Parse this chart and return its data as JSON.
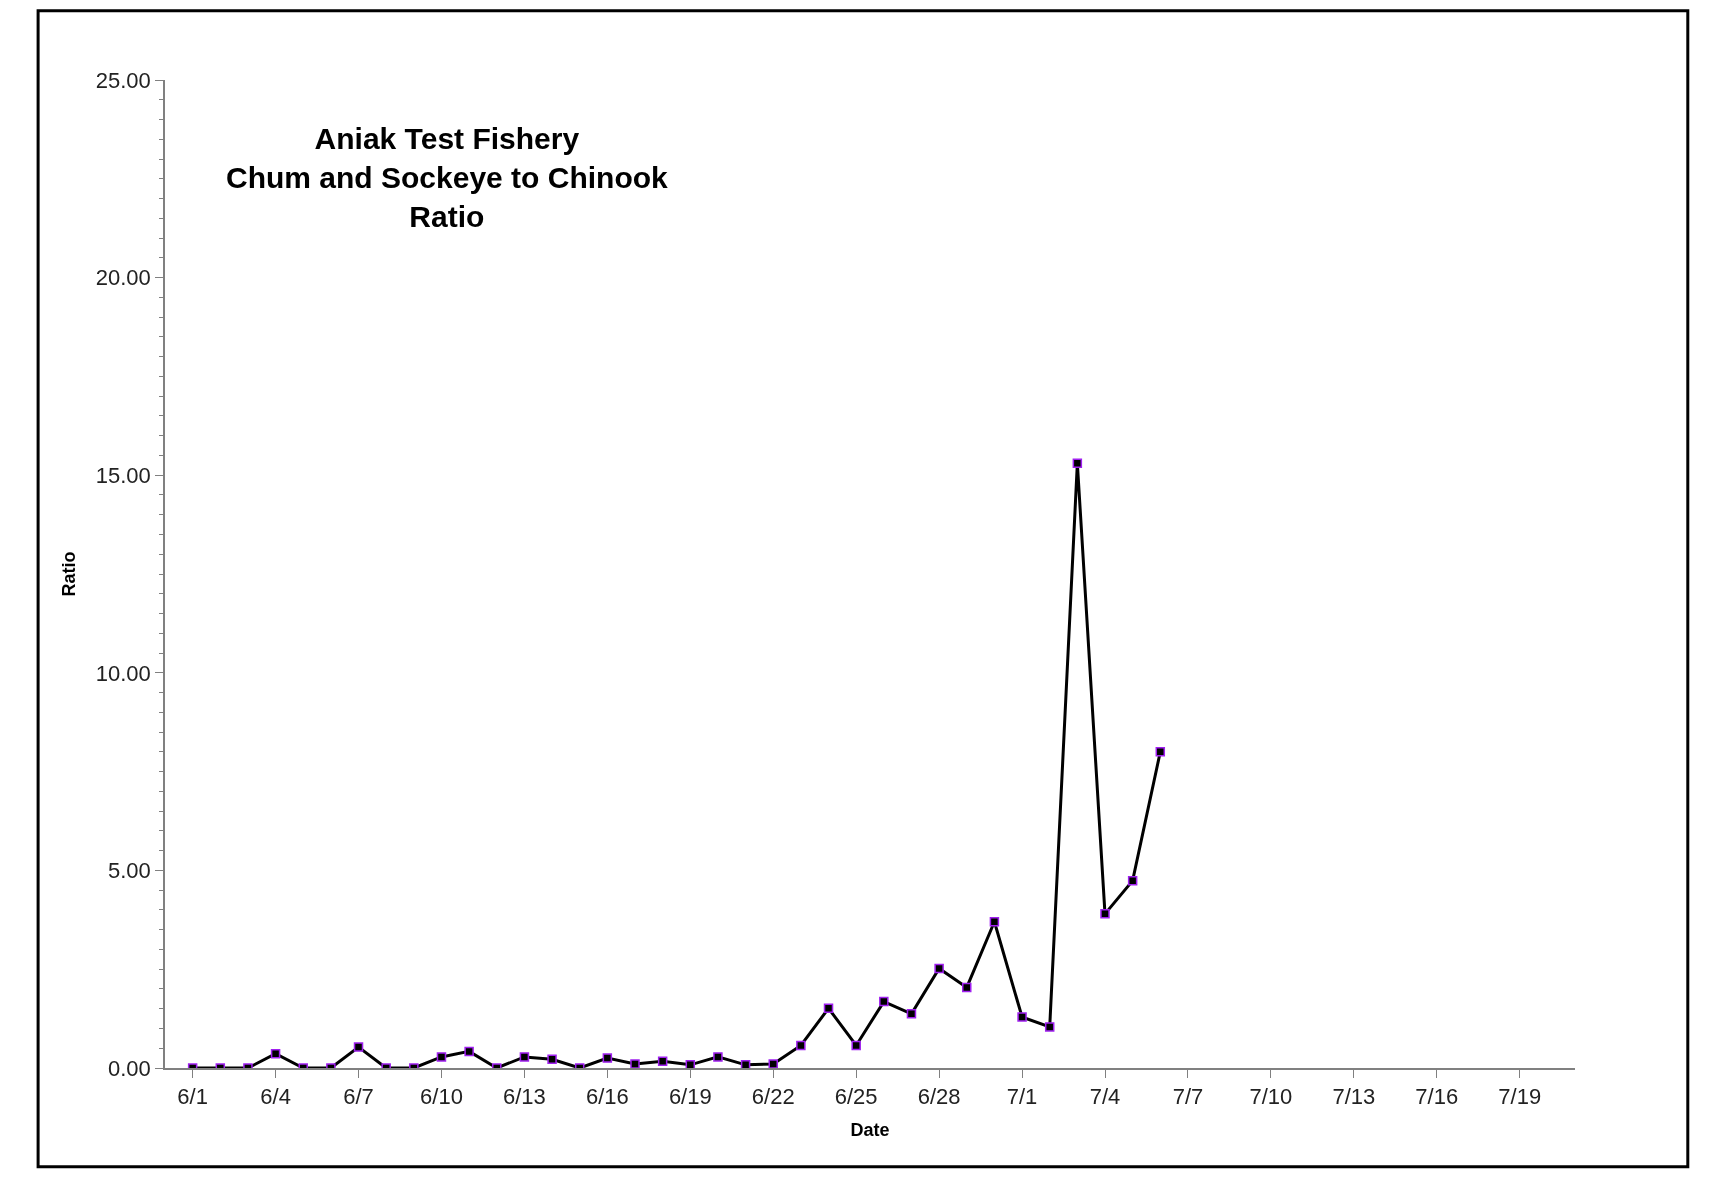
{
  "chart_data": {
    "type": "line",
    "title": "Aniak Test Fishery\nChum and Sockeye to Chinook\nRatio",
    "xlabel": "Date",
    "ylabel": "Ratio",
    "x": [
      "--06-01",
      "--06-02",
      "--06-03",
      "--06-04",
      "--06-05",
      "--06-06",
      "--06-07",
      "--06-08",
      "--06-09",
      "--06-10",
      "--06-11",
      "--06-12",
      "--06-13",
      "--06-14",
      "--06-15",
      "--06-16",
      "--06-17",
      "--06-18",
      "--06-19",
      "--06-20",
      "--06-21",
      "--06-22",
      "--06-23",
      "--06-24",
      "--06-25",
      "--06-26",
      "--06-27",
      "--06-28",
      "--06-29",
      "--06-30",
      "--07-01",
      "--07-02",
      "--07-03",
      "--07-04",
      "--07-05",
      "--07-06"
    ],
    "series": [
      {
        "color": "#000000",
        "values": [
          0,
          0,
          0,
          0.36,
          0,
          0,
          0.53,
          0,
          0,
          0.28,
          0.42,
          0,
          0.28,
          0.22,
          0,
          0.25,
          0.1,
          0.17,
          0.08,
          0.28,
          0.08,
          0.1,
          0.57,
          1.51,
          0.57,
          1.68,
          1.37,
          2.52,
          2.04,
          3.7,
          1.29,
          1.04,
          15.3,
          3.9,
          4.74,
          8.0
        ]
      }
    ],
    "marker": "square",
    "line_style": "solid",
    "xlim": [
      "--05-31",
      "--07-21"
    ],
    "xticks": [
      {
        "value": "--06-01",
        "label": "6/1"
      },
      {
        "value": "--06-04",
        "label": "6/4"
      },
      {
        "value": "--06-07",
        "label": "6/7"
      },
      {
        "value": "--06-10",
        "label": "6/10"
      },
      {
        "value": "--06-13",
        "label": "6/13"
      },
      {
        "value": "--06-16",
        "label": "6/16"
      },
      {
        "value": "--06-19",
        "label": "6/19"
      },
      {
        "value": "--06-22",
        "label": "6/22"
      },
      {
        "value": "--06-25",
        "label": "6/25"
      },
      {
        "value": "--06-28",
        "label": "6/28"
      },
      {
        "value": "--07-01",
        "label": "7/1"
      },
      {
        "value": "--07-04",
        "label": "7/4"
      },
      {
        "value": "--07-07",
        "label": "7/7"
      },
      {
        "value": "--07-10",
        "label": "7/10"
      },
      {
        "value": "--07-13",
        "label": "7/13"
      },
      {
        "value": "--07-16",
        "label": "7/16"
      },
      {
        "value": "--07-19",
        "label": "7/19"
      }
    ],
    "ylim": [
      0,
      25
    ],
    "yticks": [
      {
        "value": 0,
        "label": "0.00"
      },
      {
        "value": 5,
        "label": "5.00"
      },
      {
        "value": 10,
        "label": "10.00"
      },
      {
        "value": 15,
        "label": "15.00"
      },
      {
        "value": 20,
        "label": "20.00"
      },
      {
        "value": 25,
        "label": "25.00"
      }
    ]
  }
}
